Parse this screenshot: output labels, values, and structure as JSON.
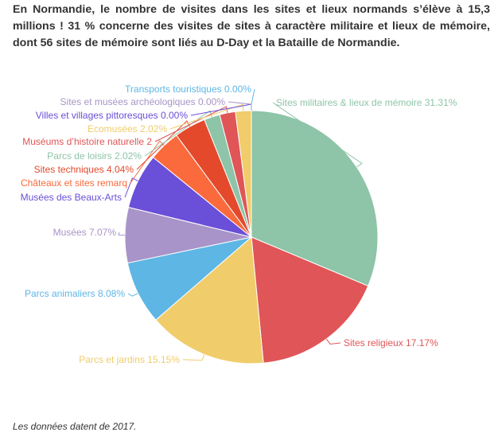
{
  "intro": {
    "line1": "En Normandie, le nombre de visites dans les sites et lieux normands s’élève à 15,3",
    "line2": "millions ! 31 % concerne des visites de sites à caractère militaire et lieux de mémoire,",
    "line3": "dont 56 sites de mémoire sont liés au D-Day et la Bataille de Normandie."
  },
  "footnote": "Les données datent de 2017.",
  "chart_data": {
    "type": "pie",
    "title": "",
    "series": [
      {
        "name": "Sites militaires & lieux de mémoire",
        "value": 31.31,
        "label": "Sites militaires & lieux de mémoire 31.31%",
        "color": "#8ec4a8"
      },
      {
        "name": "Sites religieux",
        "value": 17.17,
        "label": "Sites religieux 17.17%",
        "color": "#e05557"
      },
      {
        "name": "Parcs et jardins",
        "value": 15.15,
        "label": "Parcs et jardins 15.15%",
        "color": "#f0cc6a"
      },
      {
        "name": "Parcs animaliers",
        "value": 8.08,
        "label": "Parcs animaliers 8.08%",
        "color": "#5eb6e4"
      },
      {
        "name": "Musées",
        "value": 7.07,
        "label": "Musées 7.07%",
        "color": "#a894c8"
      },
      {
        "name": "Musées des Beaux-Arts",
        "value": 7.07,
        "label": "Musées des Beaux-Arts",
        "color": "#6a4fd8"
      },
      {
        "name": "Châteaux et sites remarquables",
        "value": 4.04,
        "label": "Châteaux et sites remarq",
        "color": "#fa6a3c"
      },
      {
        "name": "Sites techniques",
        "value": 4.04,
        "label": "Sites techniques 4.04%",
        "color": "#e4492c"
      },
      {
        "name": "Parcs de loisirs",
        "value": 2.02,
        "label": "Parcs de loisirs 2.02%",
        "color": "#8ec4a8"
      },
      {
        "name": "Muséums d’histoire naturelle",
        "value": 2.02,
        "label": "Muséums d’histoire naturelle 2",
        "color": "#e05557"
      },
      {
        "name": "Ecomusées",
        "value": 2.02,
        "label": "Ecomusées 2.02%",
        "color": "#f0cc6a"
      },
      {
        "name": "Villes et villages pittoresques",
        "value": 0.0,
        "label": "Villes et villages pittoresques 0.00%",
        "color": "#6a4fd8"
      },
      {
        "name": "Sites et musées archéologiques",
        "value": 0.0,
        "label": "Sites et musées archéologiques 0.00%",
        "color": "#a894c8"
      },
      {
        "name": "Transports touristiques",
        "value": 0.0,
        "label": "Transports touristiques 0.00%",
        "color": "#5eb6e4"
      }
    ]
  }
}
